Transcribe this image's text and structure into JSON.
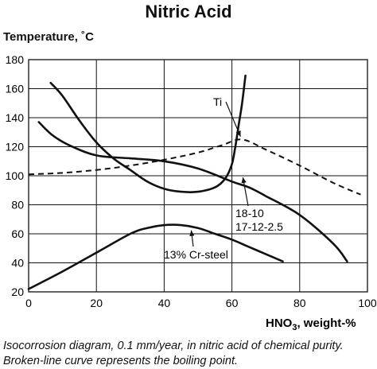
{
  "title": "Nitric Acid",
  "caption": "Isocorrosion diagram, 0.1 mm/year, in nitric acid of chemical purity. Broken-line curve represents the boiling point.",
  "chart_data": {
    "type": "line",
    "title": "Nitric Acid",
    "xlabel": "HNO3, weight-%",
    "ylabel": "Temperature, ˚C",
    "xlim": [
      0,
      100
    ],
    "ylim": [
      20,
      180
    ],
    "xticks": [
      0,
      20,
      40,
      60,
      80,
      100
    ],
    "yticks": [
      20,
      40,
      60,
      80,
      100,
      120,
      140,
      160,
      180
    ],
    "grid": true,
    "series": [
      {
        "name": "Ti",
        "style": "solid",
        "points": [
          [
            6.5,
            164
          ],
          [
            10,
            155
          ],
          [
            15,
            138
          ],
          [
            20,
            123
          ],
          [
            25,
            112
          ],
          [
            30,
            104
          ],
          [
            35,
            96
          ],
          [
            40,
            91
          ],
          [
            45,
            89
          ],
          [
            50,
            89
          ],
          [
            55,
            92
          ],
          [
            58,
            98
          ],
          [
            60,
            108
          ],
          [
            61,
            120
          ],
          [
            62,
            135
          ],
          [
            63,
            150
          ],
          [
            64,
            169
          ]
        ]
      },
      {
        "name": "18-10 / 17-12-2.5",
        "style": "solid",
        "points": [
          [
            3,
            137
          ],
          [
            7,
            128
          ],
          [
            12,
            121
          ],
          [
            20,
            114
          ],
          [
            30,
            112
          ],
          [
            40,
            110
          ],
          [
            50,
            105
          ],
          [
            60,
            96
          ],
          [
            65,
            92
          ],
          [
            70,
            86
          ],
          [
            80,
            73
          ],
          [
            90,
            53
          ],
          [
            94,
            41
          ]
        ]
      },
      {
        "name": "13% Cr-steel",
        "style": "solid",
        "points": [
          [
            0,
            22
          ],
          [
            10,
            34
          ],
          [
            20,
            47
          ],
          [
            30,
            60
          ],
          [
            35,
            64
          ],
          [
            40,
            66
          ],
          [
            45,
            66
          ],
          [
            50,
            64
          ],
          [
            55,
            60
          ],
          [
            60,
            56
          ],
          [
            65,
            51
          ],
          [
            70,
            46
          ],
          [
            75,
            41
          ]
        ]
      },
      {
        "name": "Boiling point",
        "style": "dashed",
        "points": [
          [
            0,
            101
          ],
          [
            10,
            102
          ],
          [
            20,
            104
          ],
          [
            30,
            107
          ],
          [
            40,
            111
          ],
          [
            50,
            116
          ],
          [
            57,
            121
          ],
          [
            63,
            125
          ],
          [
            70,
            118
          ],
          [
            80,
            107
          ],
          [
            90,
            95
          ],
          [
            98,
            87
          ]
        ]
      }
    ],
    "annotations": [
      {
        "text": "Ti",
        "target": [
          63,
          127
        ]
      },
      {
        "text": "18-10",
        "target": [
          63,
          100
        ]
      },
      {
        "text": "17-12-2.5",
        "target": null
      },
      {
        "text": "13% Cr-steel",
        "target": [
          48,
          64
        ]
      }
    ]
  }
}
